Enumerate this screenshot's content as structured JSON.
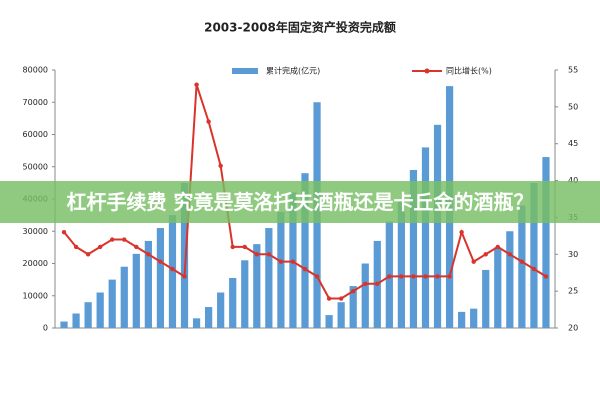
{
  "chart_data": {
    "type": "bar-line",
    "title": "2003-2008年固定资产投资完成额",
    "categories": [
      null,
      null,
      null,
      null,
      null,
      null,
      null,
      null,
      null,
      null,
      null,
      null,
      null,
      null,
      null,
      null,
      null,
      null,
      null,
      null,
      null,
      null,
      null,
      null,
      null,
      null,
      null,
      null,
      null,
      null,
      null,
      null,
      null,
      null,
      null,
      null,
      null,
      null,
      null,
      null,
      null
    ],
    "series": [
      {
        "name": "累计完成(亿元)",
        "color": "#5b9bd5",
        "type": "bar",
        "values": [
          2000,
          4500,
          8000,
          11000,
          15000,
          19000,
          23000,
          27000,
          31000,
          35000,
          45000,
          3000,
          6500,
          11000,
          15500,
          21000,
          26000,
          31000,
          36000,
          42000,
          48000,
          70000,
          4000,
          8000,
          13000,
          20000,
          27000,
          33000,
          40000,
          49000,
          56000,
          63000,
          75000,
          5000,
          6000,
          18000,
          25000,
          30000,
          38000,
          45000,
          53000
        ]
      },
      {
        "name": "同比增长(%)",
        "color": "#d9342b",
        "type": "line",
        "axis": "y2",
        "values": [
          33,
          31,
          30,
          31,
          32,
          32,
          31,
          30,
          29,
          28,
          27,
          53,
          48,
          42,
          31,
          31,
          30,
          30,
          29,
          29,
          28,
          27,
          24,
          24,
          25,
          26,
          26,
          27,
          27,
          27,
          27,
          27,
          27,
          33,
          29,
          30,
          31,
          30,
          29,
          28,
          27
        ]
      }
    ],
    "ylim": [
      0,
      80000
    ],
    "yticks": [
      0,
      10000,
      20000,
      30000,
      40000,
      50000,
      60000,
      70000,
      80000
    ],
    "y2lim": [
      20,
      55
    ],
    "y2ticks": [
      20,
      25,
      30,
      35,
      40,
      45,
      50,
      55
    ],
    "overlay_text": "杠杆手续费 究竟是莫洛托夫酒瓶还是卡丘金的酒瓶？"
  }
}
